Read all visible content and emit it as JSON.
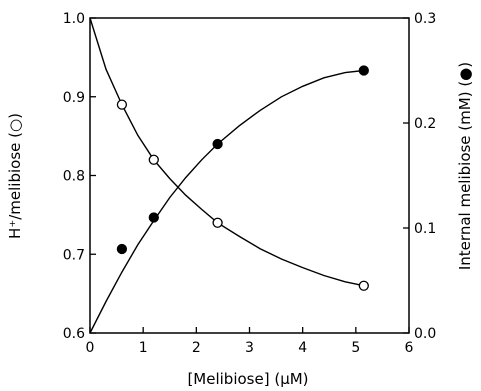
{
  "chart_data": {
    "type": "scatter",
    "xlabel": "[Melibiose] (μM)",
    "ylabel_left": "H⁺/melibiose (○)",
    "ylabel_right": "Internal melibiose (mM) (●)",
    "xlim": [
      0,
      6
    ],
    "ylim_left": [
      0.6,
      1.0
    ],
    "ylim_right": [
      0.0,
      0.3
    ],
    "x_ticks": [
      "0",
      "1",
      "2",
      "3",
      "4",
      "5",
      "6"
    ],
    "y_left_ticks": [
      "0.6",
      "0.7",
      "0.8",
      "0.9",
      "1.0"
    ],
    "y_right_ticks": [
      "0.0",
      "0.1",
      "0.2",
      "0.3"
    ],
    "grid": false,
    "series": [
      {
        "marker": "open-circle",
        "axis": "left",
        "x": [
          0.6,
          1.2,
          2.4,
          5.15
        ],
        "y": [
          0.89,
          0.82,
          0.74,
          0.66
        ],
        "fit_curve": [
          [
            0.0,
            1.0
          ],
          [
            0.3,
            0.935
          ],
          [
            0.6,
            0.89
          ],
          [
            0.9,
            0.851
          ],
          [
            1.2,
            0.82
          ],
          [
            1.5,
            0.796
          ],
          [
            1.8,
            0.775
          ],
          [
            2.1,
            0.757
          ],
          [
            2.4,
            0.74
          ],
          [
            2.8,
            0.723
          ],
          [
            3.2,
            0.707
          ],
          [
            3.6,
            0.694
          ],
          [
            4.0,
            0.683
          ],
          [
            4.4,
            0.673
          ],
          [
            4.8,
            0.665
          ],
          [
            5.15,
            0.66
          ]
        ]
      },
      {
        "marker": "filled-circle",
        "axis": "right",
        "x": [
          0.6,
          1.2,
          2.4,
          5.15
        ],
        "y": [
          0.08,
          0.11,
          0.18,
          0.25
        ],
        "fit_curve": [
          [
            0.0,
            0.0
          ],
          [
            0.3,
            0.03
          ],
          [
            0.6,
            0.058
          ],
          [
            0.9,
            0.084
          ],
          [
            1.2,
            0.107
          ],
          [
            1.5,
            0.129
          ],
          [
            1.8,
            0.148
          ],
          [
            2.1,
            0.165
          ],
          [
            2.4,
            0.18
          ],
          [
            2.8,
            0.197
          ],
          [
            3.2,
            0.212
          ],
          [
            3.6,
            0.225
          ],
          [
            4.0,
            0.235
          ],
          [
            4.4,
            0.243
          ],
          [
            4.8,
            0.248
          ],
          [
            5.15,
            0.25
          ]
        ]
      }
    ]
  }
}
